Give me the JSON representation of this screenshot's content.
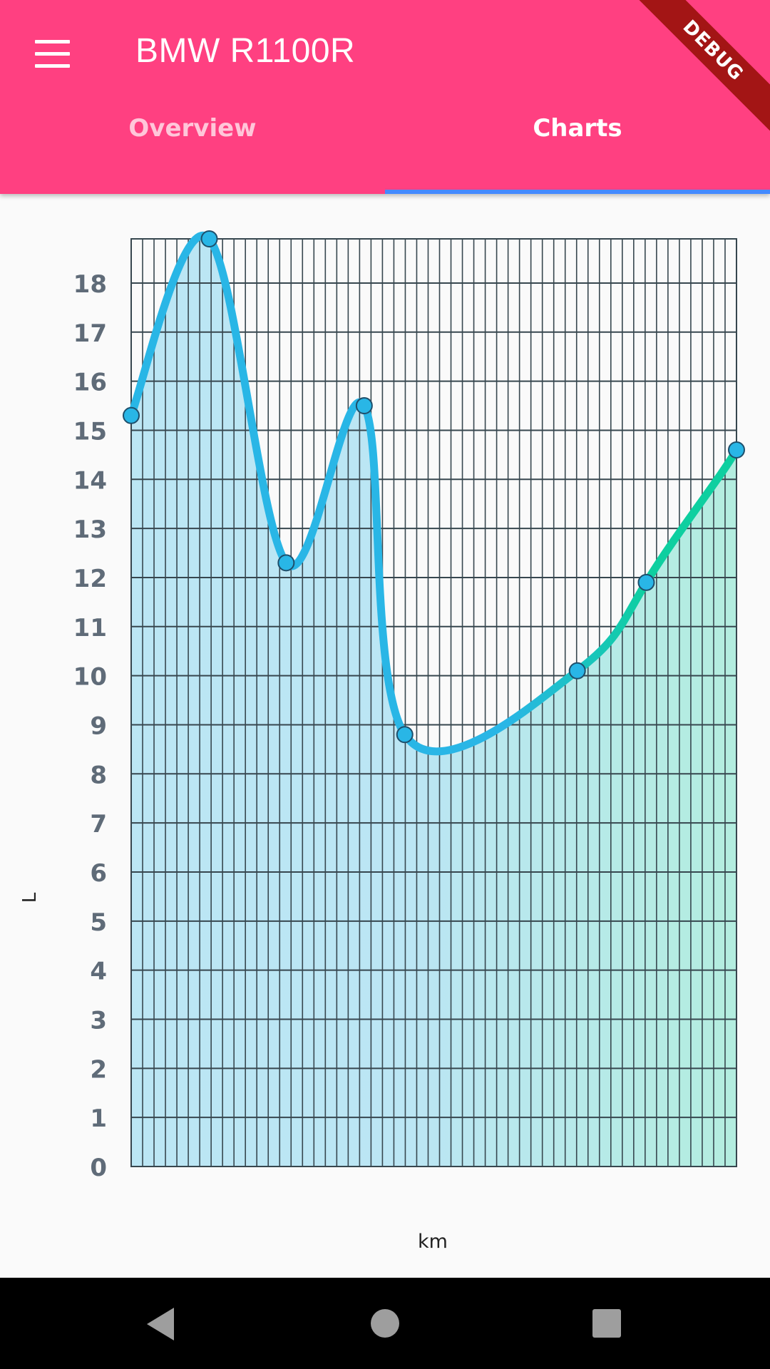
{
  "appbar": {
    "title": "BMW R1100R",
    "tabs": [
      {
        "label": "Overview",
        "active": false
      },
      {
        "label": "Charts",
        "active": true
      }
    ],
    "debug_banner": "DEBUG",
    "background": "#ff4081",
    "indicator_color": "#448aff"
  },
  "chart_data": {
    "type": "area",
    "title": "",
    "xlabel": "km",
    "ylabel": "L",
    "ylim": [
      0,
      18.9
    ],
    "yticks": [
      0,
      1,
      2,
      3,
      4,
      5,
      6,
      7,
      8,
      9,
      10,
      11,
      12,
      13,
      14,
      15,
      16,
      17,
      18
    ],
    "x_gridlines": 53,
    "grid": true,
    "colors": {
      "start": "#29b6e6",
      "end": "#0ecfa0"
    },
    "series": [
      {
        "values": [
          15.3,
          18.9,
          12.3,
          15.5,
          8.8,
          10.1,
          11.9,
          14.6
        ],
        "x_fraction": [
          0.0,
          0.129,
          0.256,
          0.385,
          0.452,
          0.737,
          0.851,
          1.0
        ]
      }
    ]
  },
  "navbar": {
    "icons": [
      "back-icon",
      "home-icon",
      "recent-apps-icon"
    ]
  }
}
